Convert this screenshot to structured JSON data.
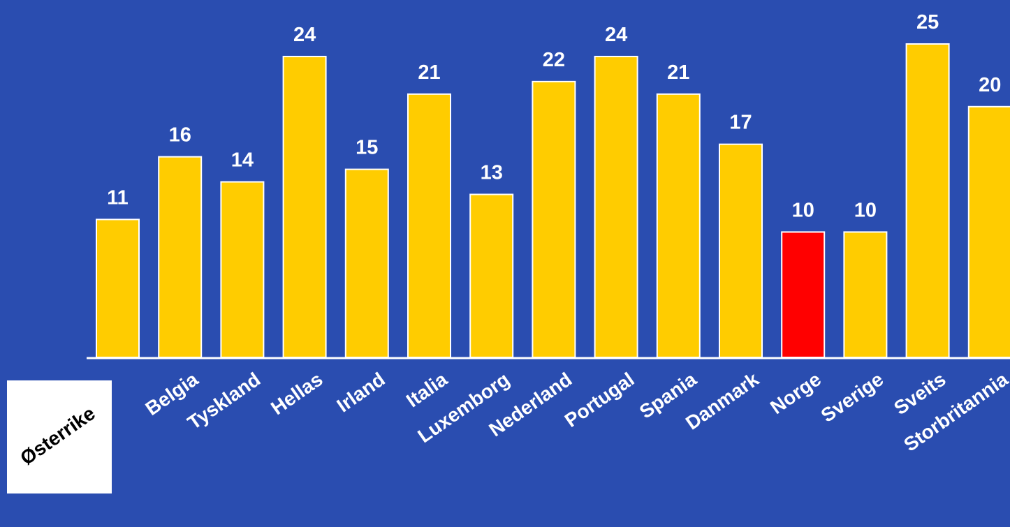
{
  "chart_data": {
    "type": "bar",
    "categories": [
      "Østerrike",
      "Belgia",
      "Tyskland",
      "Hellas",
      "Irland",
      "Italia",
      "Luxemborg",
      "Nederland",
      "Portugal",
      "Spania",
      "Danmark",
      "Norge",
      "Sverige",
      "Sveits",
      "Storbritannia"
    ],
    "values": [
      11,
      16,
      14,
      24,
      15,
      21,
      13,
      22,
      24,
      21,
      17,
      10,
      10,
      25,
      20
    ],
    "data_labels": [
      "11",
      "16",
      "14",
      "24",
      "15",
      "21",
      "13",
      "22",
      "24",
      "21",
      "17",
      "10",
      "10",
      "25",
      "20"
    ],
    "ylim": [
      0,
      25.5
    ],
    "grid": false,
    "colors": {
      "background": "#2a4db0",
      "bar": "#ffcc00",
      "highlight_bar": "#ff0000",
      "highlight_category": "Norge",
      "bar_outline": "#ffffff",
      "label_text": "#ffffff",
      "axis": "#ffffff",
      "first_label_box": "#ffffff",
      "first_label_text": "#000000"
    }
  }
}
